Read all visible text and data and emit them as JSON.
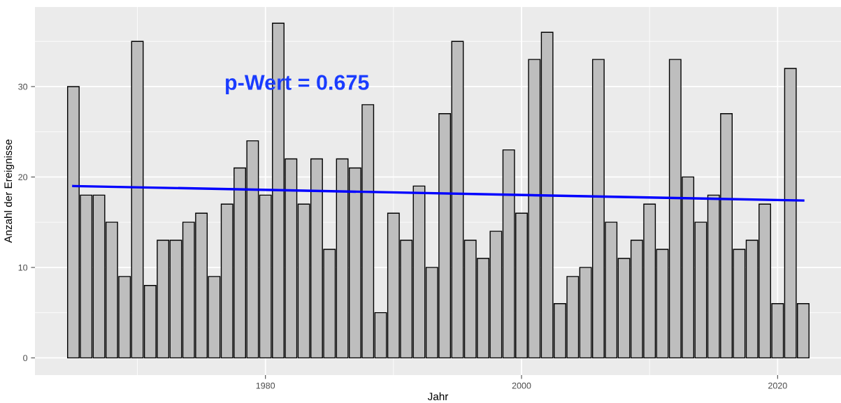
{
  "chart_data": {
    "type": "bar",
    "xlabel": "Jahr",
    "ylabel": "Anzahl der Ereignisse",
    "x": [
      1965,
      1966,
      1967,
      1968,
      1969,
      1970,
      1971,
      1972,
      1973,
      1974,
      1975,
      1976,
      1977,
      1978,
      1979,
      1980,
      1981,
      1982,
      1983,
      1984,
      1985,
      1986,
      1987,
      1988,
      1989,
      1990,
      1991,
      1992,
      1993,
      1994,
      1995,
      1996,
      1997,
      1998,
      1999,
      2000,
      2001,
      2002,
      2003,
      2004,
      2005,
      2006,
      2007,
      2008,
      2009,
      2010,
      2011,
      2012,
      2013,
      2014,
      2015,
      2016,
      2017,
      2018,
      2019,
      2020,
      2021,
      2022
    ],
    "series": [
      {
        "color": "#bebebe",
        "values": [
          30,
          18,
          18,
          15,
          9,
          35,
          8,
          13,
          13,
          15,
          16,
          9,
          17,
          21,
          24,
          18,
          37,
          22,
          17,
          22,
          12,
          22,
          21,
          28,
          5,
          16,
          13,
          19,
          10,
          27,
          35,
          13,
          11,
          14,
          23,
          16,
          33,
          36,
          6,
          9,
          10,
          33,
          15,
          11,
          13,
          17,
          12,
          33,
          20,
          15,
          18,
          27,
          12,
          13,
          17,
          6,
          32,
          6
        ]
      },
      {
        "type": "line",
        "color": "#0000ff",
        "x": [
          1965,
          2022
        ],
        "values": [
          19.0,
          17.4
        ]
      }
    ],
    "annotations": [
      "p-Wert = 0.675"
    ],
    "xlim": [
      1962.0,
      2024.95
    ],
    "ylim": [
      -1.9,
      38.8
    ],
    "xticks": [
      1980,
      2000,
      2020
    ],
    "yticks": [
      0,
      10,
      20,
      30
    ],
    "grid": true
  }
}
